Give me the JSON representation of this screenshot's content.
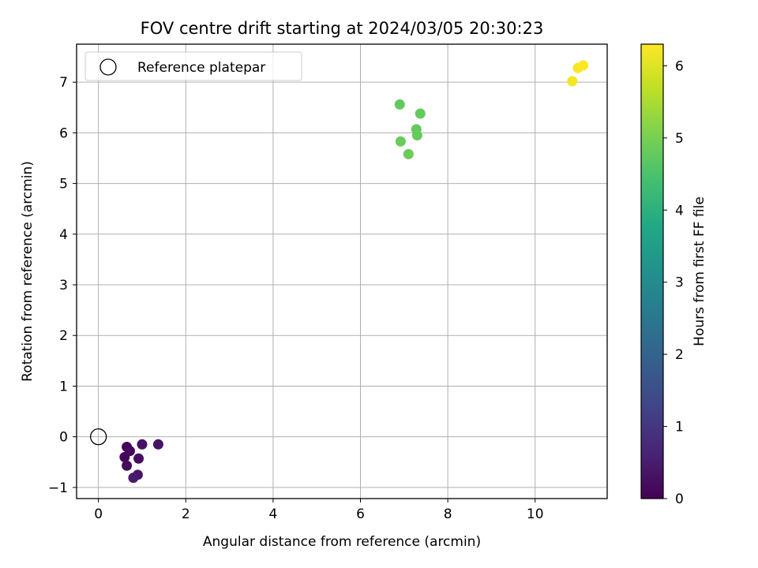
{
  "chart_data": {
    "type": "scatter",
    "title": "FOV centre drift starting at 2024/03/05 20:30:23",
    "xlabel": "Angular distance from reference (arcmin)",
    "ylabel": "Rotation from reference (arcmin)",
    "xlim": [
      -0.5,
      11.65
    ],
    "ylim": [
      -1.22,
      7.75
    ],
    "xticks": [
      0,
      2,
      4,
      6,
      8,
      10
    ],
    "yticks": [
      -1,
      0,
      1,
      2,
      3,
      4,
      5,
      6,
      7
    ],
    "grid": true,
    "legend": {
      "placement": "top-left",
      "entries": [
        "Reference platepar"
      ]
    },
    "reference": {
      "name": "Reference platepar",
      "x": 0,
      "y": 0
    },
    "colorbar": {
      "label": "Hours from first FF file",
      "range": [
        0,
        6.3
      ],
      "ticks": [
        0,
        1,
        2,
        3,
        4,
        5,
        6
      ],
      "colormap": "viridis"
    },
    "points": [
      {
        "x": 0.65,
        "y": -0.2,
        "h": 0.05
      },
      {
        "x": 0.72,
        "y": -0.28,
        "h": 0.1
      },
      {
        "x": 0.6,
        "y": -0.4,
        "h": 0.15
      },
      {
        "x": 0.65,
        "y": -0.57,
        "h": 0.2
      },
      {
        "x": 0.92,
        "y": -0.43,
        "h": 0.25
      },
      {
        "x": 1.0,
        "y": -0.15,
        "h": 0.3
      },
      {
        "x": 1.37,
        "y": -0.15,
        "h": 0.35
      },
      {
        "x": 0.9,
        "y": -0.75,
        "h": 0.4
      },
      {
        "x": 0.8,
        "y": -0.81,
        "h": 0.45
      },
      {
        "x": 6.9,
        "y": 6.56,
        "h": 4.75
      },
      {
        "x": 7.37,
        "y": 6.38,
        "h": 4.78
      },
      {
        "x": 7.28,
        "y": 6.07,
        "h": 4.8
      },
      {
        "x": 7.3,
        "y": 5.95,
        "h": 4.82
      },
      {
        "x": 6.92,
        "y": 5.83,
        "h": 4.85
      },
      {
        "x": 7.1,
        "y": 5.58,
        "h": 4.88
      },
      {
        "x": 10.85,
        "y": 7.02,
        "h": 6.2
      },
      {
        "x": 10.98,
        "y": 7.28,
        "h": 6.25
      },
      {
        "x": 11.1,
        "y": 7.33,
        "h": 6.3
      }
    ]
  }
}
